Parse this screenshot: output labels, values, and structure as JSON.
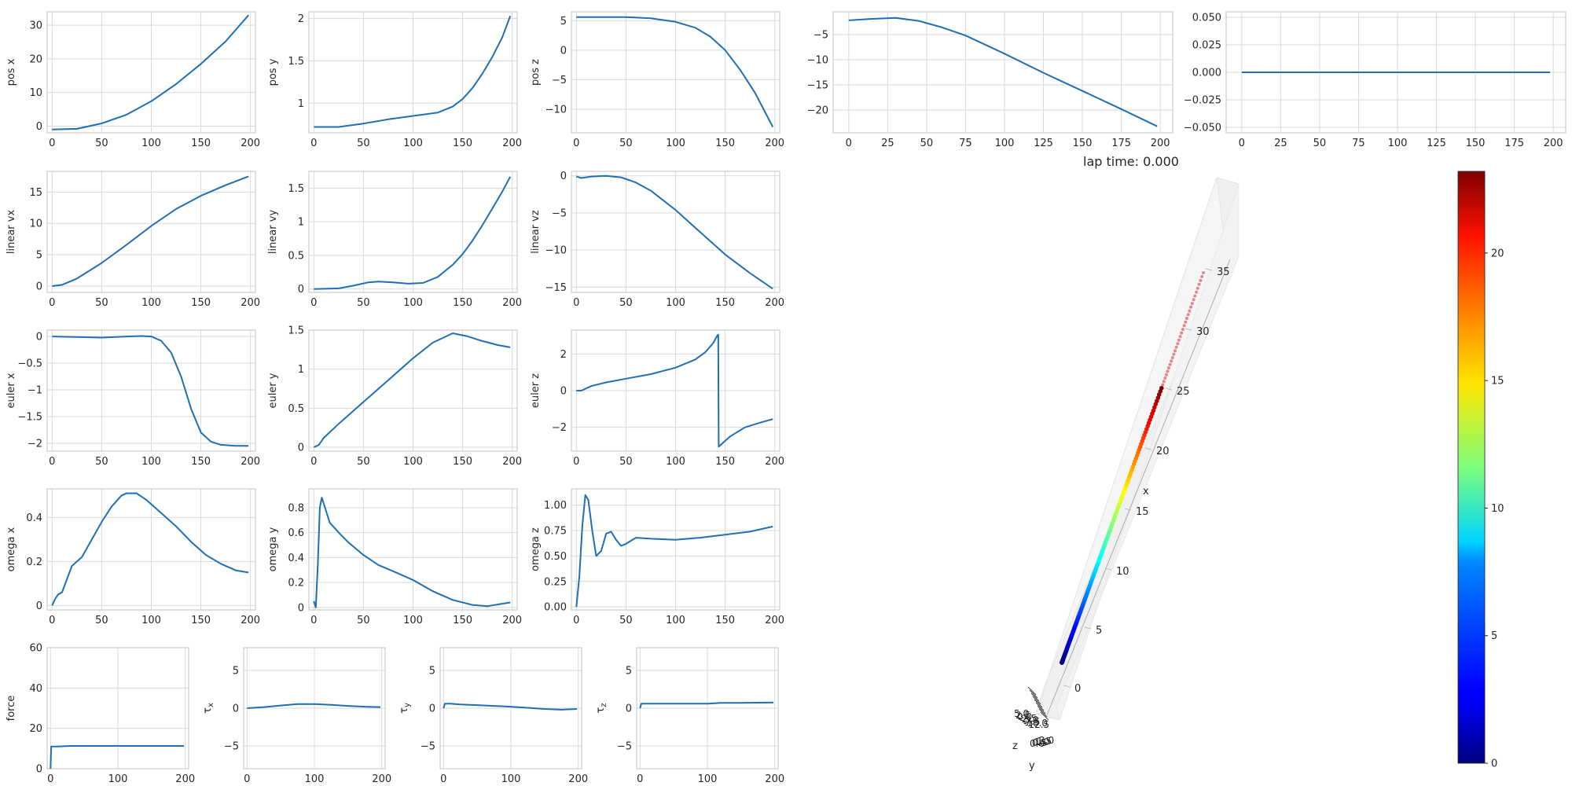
{
  "figure": {
    "lap_time_text": "lap time: 0.000"
  },
  "colors": {
    "line": "#1f6fb5",
    "grid": "#d9d9d9",
    "spine": "#cccccc",
    "text": "#262626"
  },
  "chart_data": [
    {
      "id": "pos-x",
      "type": "line",
      "ylabel": "pos x",
      "xlim": [
        -5,
        205
      ],
      "ylim": [
        -2,
        34
      ],
      "xticks": [
        0,
        50,
        100,
        150,
        200
      ],
      "yticks": [
        0,
        10,
        20,
        30
      ],
      "series": [
        {
          "x": [
            0,
            25,
            50,
            75,
            100,
            125,
            150,
            175,
            198
          ],
          "y": [
            -1.0,
            -0.8,
            0.8,
            3.4,
            7.4,
            12.5,
            18.5,
            25.2,
            33.0
          ]
        }
      ]
    },
    {
      "id": "pos-y",
      "type": "line",
      "ylabel": "pos y",
      "xlim": [
        -5,
        205
      ],
      "ylim": [
        0.65,
        2.08
      ],
      "xticks": [
        0,
        50,
        100,
        150,
        200
      ],
      "yticks": [
        1.0,
        1.5,
        2.0
      ],
      "series": [
        {
          "x": [
            0,
            25,
            50,
            75,
            100,
            125,
            140,
            150,
            160,
            170,
            180,
            190,
            198
          ],
          "y": [
            0.72,
            0.72,
            0.76,
            0.81,
            0.85,
            0.89,
            0.96,
            1.05,
            1.18,
            1.35,
            1.55,
            1.78,
            2.03
          ]
        }
      ]
    },
    {
      "id": "pos-z",
      "type": "line",
      "ylabel": "pos z",
      "xlim": [
        -5,
        205
      ],
      "ylim": [
        -14,
        6.5
      ],
      "xticks": [
        0,
        50,
        100,
        150,
        200
      ],
      "yticks": [
        -10,
        -5,
        0,
        5
      ],
      "series": [
        {
          "x": [
            0,
            25,
            50,
            75,
            100,
            120,
            135,
            150,
            165,
            180,
            198
          ],
          "y": [
            5.6,
            5.6,
            5.6,
            5.4,
            4.8,
            3.8,
            2.3,
            0.0,
            -3.3,
            -7.2,
            -13.0
          ]
        }
      ]
    },
    {
      "id": "pos-extra-1",
      "type": "line",
      "ylabel": "",
      "xlim": [
        -10,
        208
      ],
      "ylim": [
        -24.5,
        -0.5
      ],
      "xticks": [
        0,
        25,
        50,
        75,
        100,
        125,
        150,
        175,
        200
      ],
      "yticks": [
        -20,
        -15,
        -10,
        -5
      ],
      "series": [
        {
          "x": [
            0,
            15,
            30,
            45,
            60,
            75,
            100,
            125,
            150,
            175,
            198
          ],
          "y": [
            -2.2,
            -1.9,
            -1.7,
            -2.3,
            -3.6,
            -5.2,
            -8.8,
            -12.6,
            -16.2,
            -19.8,
            -23.2
          ]
        }
      ]
    },
    {
      "id": "pos-extra-2",
      "type": "line",
      "ylabel": "",
      "xlim": [
        -10,
        208
      ],
      "ylim": [
        -0.055,
        0.055
      ],
      "xticks": [
        0,
        25,
        50,
        75,
        100,
        125,
        150,
        175,
        200
      ],
      "yticks": [
        -0.05,
        -0.025,
        0.0,
        0.025,
        0.05
      ],
      "ytick_labels": [
        "−0.050",
        "−0.025",
        "0.000",
        "0.025",
        "0.050"
      ],
      "series": [
        {
          "x": [
            0,
            198
          ],
          "y": [
            0.0,
            0.0
          ]
        }
      ]
    },
    {
      "id": "linear-vx",
      "type": "line",
      "ylabel": "linear vx",
      "xlim": [
        -5,
        205
      ],
      "ylim": [
        -1,
        18.3
      ],
      "xticks": [
        0,
        50,
        100,
        150,
        200
      ],
      "yticks": [
        0,
        5,
        10,
        15
      ],
      "series": [
        {
          "x": [
            0,
            10,
            25,
            50,
            75,
            100,
            125,
            150,
            175,
            198
          ],
          "y": [
            0.0,
            0.2,
            1.2,
            3.7,
            6.6,
            9.6,
            12.3,
            14.4,
            16.1,
            17.5
          ]
        }
      ]
    },
    {
      "id": "linear-vy",
      "type": "line",
      "ylabel": "linear vy",
      "xlim": [
        -5,
        205
      ],
      "ylim": [
        -0.05,
        1.75
      ],
      "xticks": [
        0,
        50,
        100,
        150,
        200
      ],
      "yticks": [
        0.0,
        0.5,
        1.0,
        1.5
      ],
      "series": [
        {
          "x": [
            0,
            25,
            40,
            55,
            65,
            80,
            95,
            110,
            125,
            140,
            150,
            160,
            170,
            180,
            190,
            198
          ],
          "y": [
            0.0,
            0.01,
            0.05,
            0.1,
            0.11,
            0.1,
            0.08,
            0.09,
            0.18,
            0.36,
            0.52,
            0.72,
            0.95,
            1.2,
            1.45,
            1.67
          ]
        }
      ]
    },
    {
      "id": "linear-vz",
      "type": "line",
      "ylabel": "linear vz",
      "xlim": [
        -5,
        205
      ],
      "ylim": [
        -15.7,
        0.6
      ],
      "xticks": [
        0,
        50,
        100,
        150,
        200
      ],
      "yticks": [
        -15,
        -10,
        -5,
        0
      ],
      "series": [
        {
          "x": [
            0,
            5,
            15,
            30,
            45,
            60,
            75,
            100,
            125,
            150,
            175,
            198
          ],
          "y": [
            -0.1,
            -0.3,
            -0.1,
            0.0,
            -0.2,
            -0.9,
            -2.0,
            -4.6,
            -7.6,
            -10.6,
            -13.1,
            -15.2
          ]
        }
      ]
    },
    {
      "id": "euler-x",
      "type": "line",
      "ylabel": "euler x",
      "xlim": [
        -5,
        205
      ],
      "ylim": [
        -2.15,
        0.12
      ],
      "xticks": [
        0,
        50,
        100,
        150,
        200
      ],
      "yticks": [
        -2.0,
        -1.5,
        -1.0,
        -0.5,
        0.0
      ],
      "series": [
        {
          "x": [
            0,
            25,
            50,
            75,
            90,
            100,
            110,
            120,
            130,
            140,
            150,
            160,
            170,
            185,
            198
          ],
          "y": [
            0.0,
            -0.01,
            -0.02,
            0.0,
            0.01,
            0.0,
            -0.08,
            -0.3,
            -0.75,
            -1.35,
            -1.8,
            -1.97,
            -2.03,
            -2.05,
            -2.05
          ]
        }
      ]
    },
    {
      "id": "euler-y",
      "type": "line",
      "ylabel": "euler y",
      "xlim": [
        -5,
        205
      ],
      "ylim": [
        -0.05,
        1.5
      ],
      "xticks": [
        0,
        50,
        100,
        150,
        200
      ],
      "yticks": [
        0.0,
        0.5,
        1.0,
        1.5
      ],
      "series": [
        {
          "x": [
            0,
            5,
            10,
            25,
            50,
            75,
            100,
            120,
            140,
            155,
            170,
            185,
            198
          ],
          "y": [
            0.0,
            0.03,
            0.12,
            0.3,
            0.58,
            0.86,
            1.14,
            1.34,
            1.46,
            1.42,
            1.36,
            1.31,
            1.28
          ]
        }
      ]
    },
    {
      "id": "euler-z",
      "type": "line",
      "ylabel": "euler z",
      "xlim": [
        -5,
        205
      ],
      "ylim": [
        -3.3,
        3.3
      ],
      "xticks": [
        0,
        50,
        100,
        150,
        200
      ],
      "yticks": [
        -2,
        0,
        2
      ],
      "series": [
        {
          "x": [
            0,
            5,
            15,
            30,
            50,
            75,
            100,
            120,
            130,
            138,
            142,
            143,
            143.5,
            155,
            170,
            185,
            198
          ],
          "y": [
            0.0,
            0.0,
            0.25,
            0.45,
            0.65,
            0.9,
            1.25,
            1.7,
            2.1,
            2.6,
            3.0,
            3.05,
            -3.05,
            -2.5,
            -2.0,
            -1.75,
            -1.55
          ]
        }
      ]
    },
    {
      "id": "omega-x",
      "type": "line",
      "ylabel": "omega x",
      "xlim": [
        -5,
        205
      ],
      "ylim": [
        -0.02,
        0.53
      ],
      "xticks": [
        0,
        50,
        100,
        150,
        200
      ],
      "yticks": [
        0.0,
        0.2,
        0.4
      ],
      "series": [
        {
          "x": [
            0,
            3,
            6,
            10,
            15,
            20,
            30,
            40,
            50,
            60,
            70,
            75,
            85,
            95,
            110,
            125,
            140,
            155,
            170,
            185,
            198
          ],
          "y": [
            0.0,
            0.03,
            0.05,
            0.06,
            0.12,
            0.18,
            0.22,
            0.3,
            0.38,
            0.45,
            0.5,
            0.51,
            0.51,
            0.48,
            0.42,
            0.36,
            0.29,
            0.23,
            0.19,
            0.16,
            0.15
          ]
        }
      ]
    },
    {
      "id": "omega-y",
      "type": "line",
      "ylabel": "omega y",
      "xlim": [
        -5,
        205
      ],
      "ylim": [
        -0.02,
        0.95
      ],
      "xticks": [
        0,
        50,
        100,
        150,
        200
      ],
      "yticks": [
        0.0,
        0.2,
        0.4,
        0.6,
        0.8
      ],
      "series": [
        {
          "x": [
            0,
            2,
            4,
            6,
            8,
            12,
            16,
            25,
            35,
            50,
            65,
            80,
            100,
            120,
            140,
            160,
            175,
            190,
            198
          ],
          "y": [
            0.05,
            0.0,
            0.35,
            0.8,
            0.88,
            0.78,
            0.68,
            0.6,
            0.52,
            0.42,
            0.34,
            0.29,
            0.22,
            0.13,
            0.06,
            0.02,
            0.01,
            0.03,
            0.04
          ]
        }
      ]
    },
    {
      "id": "omega-z",
      "type": "line",
      "ylabel": "omega z",
      "xlim": [
        -5,
        205
      ],
      "ylim": [
        -0.03,
        1.16
      ],
      "xticks": [
        0,
        50,
        100,
        150,
        200
      ],
      "yticks": [
        0.0,
        0.25,
        0.5,
        0.75,
        1.0
      ],
      "ytick_labels": [
        "0.00",
        "0.25",
        "0.50",
        "0.75",
        "1.00"
      ],
      "series": [
        {
          "x": [
            0,
            3,
            6,
            9,
            12,
            16,
            20,
            25,
            30,
            35,
            40,
            45,
            50,
            60,
            75,
            100,
            125,
            150,
            175,
            198
          ],
          "y": [
            0.0,
            0.3,
            0.8,
            1.1,
            1.05,
            0.75,
            0.5,
            0.55,
            0.72,
            0.74,
            0.66,
            0.6,
            0.62,
            0.68,
            0.67,
            0.66,
            0.68,
            0.71,
            0.74,
            0.79
          ]
        }
      ]
    },
    {
      "id": "force",
      "type": "line",
      "ylabel": "force",
      "xlim": [
        -5,
        205
      ],
      "ylim": [
        0,
        60
      ],
      "xticks": [
        0,
        100,
        200
      ],
      "yticks": [
        0,
        20,
        40,
        60
      ],
      "series": [
        {
          "x": [
            0,
            0.5,
            1,
            10,
            30,
            100,
            150,
            198
          ],
          "y": [
            0.0,
            5.0,
            11.0,
            11.0,
            11.3,
            11.3,
            11.3,
            11.3
          ]
        }
      ]
    },
    {
      "id": "tau-x",
      "type": "line",
      "ylabel": "τx",
      "ylabel_sub": true,
      "xlim": [
        -5,
        205
      ],
      "ylim": [
        -8,
        8
      ],
      "xticks": [
        0,
        100,
        200
      ],
      "yticks": [
        -5,
        0,
        5
      ],
      "series": [
        {
          "x": [
            0,
            25,
            50,
            75,
            100,
            125,
            150,
            175,
            198
          ],
          "y": [
            0.0,
            0.15,
            0.35,
            0.55,
            0.55,
            0.45,
            0.3,
            0.2,
            0.15
          ]
        }
      ]
    },
    {
      "id": "tau-y",
      "type": "line",
      "ylabel": "τy",
      "ylabel_sub": true,
      "xlim": [
        -5,
        205
      ],
      "ylim": [
        -8,
        8
      ],
      "xticks": [
        0,
        100,
        200
      ],
      "yticks": [
        -5,
        0,
        5
      ],
      "series": [
        {
          "x": [
            0,
            2,
            10,
            25,
            50,
            75,
            100,
            125,
            150,
            175,
            198
          ],
          "y": [
            0.0,
            0.6,
            0.6,
            0.5,
            0.4,
            0.3,
            0.2,
            0.05,
            -0.1,
            -0.2,
            -0.1
          ]
        }
      ]
    },
    {
      "id": "tau-z",
      "type": "line",
      "ylabel": "τz",
      "ylabel_sub": true,
      "xlim": [
        -5,
        205
      ],
      "ylim": [
        -8,
        8
      ],
      "xticks": [
        0,
        100,
        200
      ],
      "yticks": [
        -5,
        0,
        5
      ],
      "series": [
        {
          "x": [
            0,
            2,
            50,
            100,
            120,
            150,
            198
          ],
          "y": [
            0.0,
            0.6,
            0.6,
            0.6,
            0.7,
            0.7,
            0.75
          ]
        }
      ]
    },
    {
      "id": "trajectory-3d",
      "type": "scatter",
      "projection": "3d",
      "xlabel": "x",
      "ylabel": "y",
      "zlabel": "z",
      "x_ticks": [
        0,
        5,
        10,
        15,
        20,
        25,
        30,
        35
      ],
      "y_tick_labels_overlapping": [
        "5.0",
        "2.5",
        "0.0",
        "-2.5",
        "-5.0",
        "-7.5",
        "-10.0",
        "-12.5"
      ],
      "z_tick_labels_overlapping": [
        "0.0",
        "0.5",
        "1.0",
        "1.5",
        "2.0"
      ],
      "series": [
        {
          "x": [
            0,
            33
          ],
          "colormap": "jet"
        }
      ]
    },
    {
      "id": "colorbar",
      "type": "colorbar",
      "colormap": "jet",
      "range": [
        0,
        23.2
      ],
      "ticks": [
        0,
        5,
        10,
        15,
        20
      ]
    }
  ]
}
